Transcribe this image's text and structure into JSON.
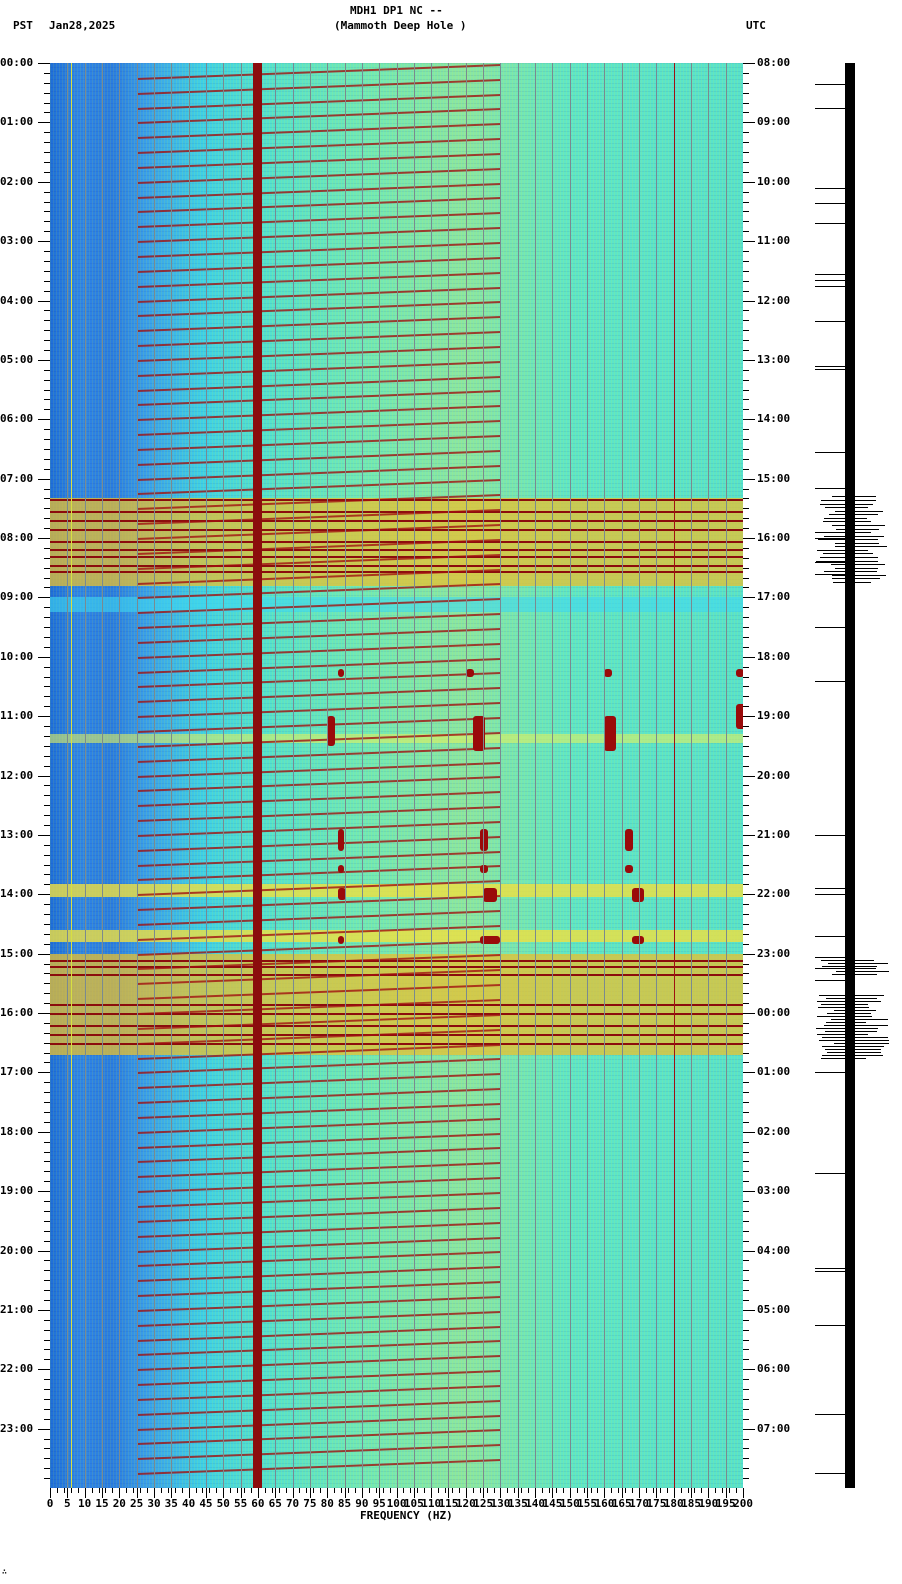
{
  "header": {
    "station": "MDH1 DP1 NC --",
    "site": "(Mammoth Deep Hole )",
    "left_tz": "PST",
    "date": "Jan28,2025",
    "right_tz": "UTC"
  },
  "footer": {
    "mark": "∴"
  },
  "chart_data": {
    "type": "heatmap",
    "title": "MDH1 DP1 NC -- (Mammoth Deep Hole ) spectrogram",
    "xlabel": "FREQUENCY (HZ)",
    "ylabel_left": "PST",
    "ylabel_right": "UTC",
    "date": "Jan28,2025",
    "xlim": [
      0,
      200
    ],
    "x_ticks": [
      "0",
      "5",
      "10",
      "15",
      "20",
      "25",
      "30",
      "35",
      "40",
      "45",
      "50",
      "55",
      "60",
      "65",
      "70",
      "75",
      "80",
      "85",
      "90",
      "95",
      "100",
      "105",
      "110",
      "115",
      "120",
      "125",
      "130",
      "135",
      "140",
      "145",
      "150",
      "155",
      "160",
      "165",
      "170",
      "175",
      "180",
      "185",
      "190",
      "195",
      "200"
    ],
    "y_ticks_left_pst": [
      "00:00",
      "01:00",
      "02:00",
      "03:00",
      "04:00",
      "05:00",
      "06:00",
      "07:00",
      "08:00",
      "09:00",
      "10:00",
      "11:00",
      "12:00",
      "13:00",
      "14:00",
      "15:00",
      "16:00",
      "17:00",
      "18:00",
      "19:00",
      "20:00",
      "21:00",
      "22:00",
      "23:00"
    ],
    "y_ticks_right_utc": [
      "08:00",
      "09:00",
      "10:00",
      "11:00",
      "12:00",
      "13:00",
      "14:00",
      "15:00",
      "16:00",
      "17:00",
      "18:00",
      "19:00",
      "20:00",
      "21:00",
      "22:00",
      "23:00",
      "00:00",
      "01:00",
      "02:00",
      "03:00",
      "04:00",
      "05:00",
      "06:00",
      "07:00"
    ],
    "grid": true,
    "colormap": "jet (blue low, red high power)",
    "features": [
      {
        "name": "persistent 60 Hz line",
        "freq_hz": 60,
        "time": "all day"
      },
      {
        "name": "secondary line",
        "freq_hz": 180,
        "time": "all day (weak)"
      },
      {
        "name": "repeating sweeps",
        "freq_hz_range": [
          25,
          130
        ],
        "interval_min": 15
      },
      {
        "name": "broadband noise band",
        "time_pst": "07:20-08:50"
      },
      {
        "name": "tremor-like events",
        "freq_hz": [
          83,
          120,
          160,
          198
        ],
        "time_pst": [
          "10:10",
          "11:00",
          "13:00",
          "13:30",
          "14:00",
          "14:45"
        ]
      },
      {
        "name": "broadband noise band",
        "time_pst": "15:00-16:40"
      }
    ],
    "seismogram": {
      "panel": "right-side trace",
      "large_amplitude_windows_pst": [
        "07:20-08:50",
        "15:10-15:30",
        "15:45-16:45"
      ]
    }
  }
}
